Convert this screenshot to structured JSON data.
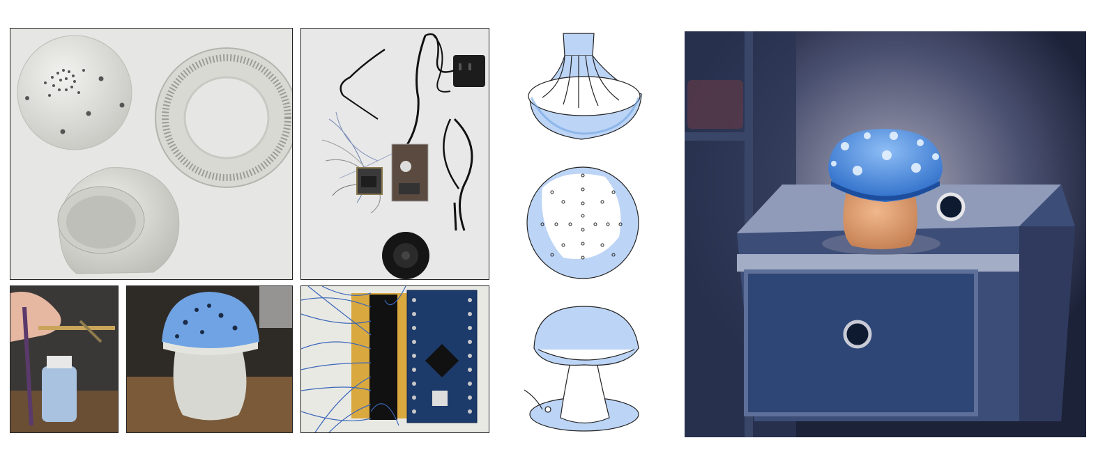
{
  "figure": {
    "panels": [
      {
        "id": "printed-parts",
        "content": "3d-printed-mushroom-shell-parts"
      },
      {
        "id": "electronics-kit",
        "content": "speaker-wires-adapter-circuit-boards"
      },
      {
        "id": "airbrush-paint",
        "content": "airbrush-painting-jar"
      },
      {
        "id": "painted-prototype",
        "content": "blue-cap-mushroom-prototype"
      },
      {
        "id": "microcontroller",
        "content": "arduino-pro-mini-wired-board"
      },
      {
        "id": "sketches",
        "content": "three-hand-drawn-mushroom-sketches"
      },
      {
        "id": "render",
        "content": "glowing-mushroom-lamp-on-nightstand"
      }
    ],
    "colors": {
      "paper": "#e6e6e4",
      "cap_blue": "#6fa3e3",
      "sketch_blue": "#bcd4f5",
      "night_bg": "#2a3350",
      "stem_orange": "#d99a6a"
    }
  }
}
